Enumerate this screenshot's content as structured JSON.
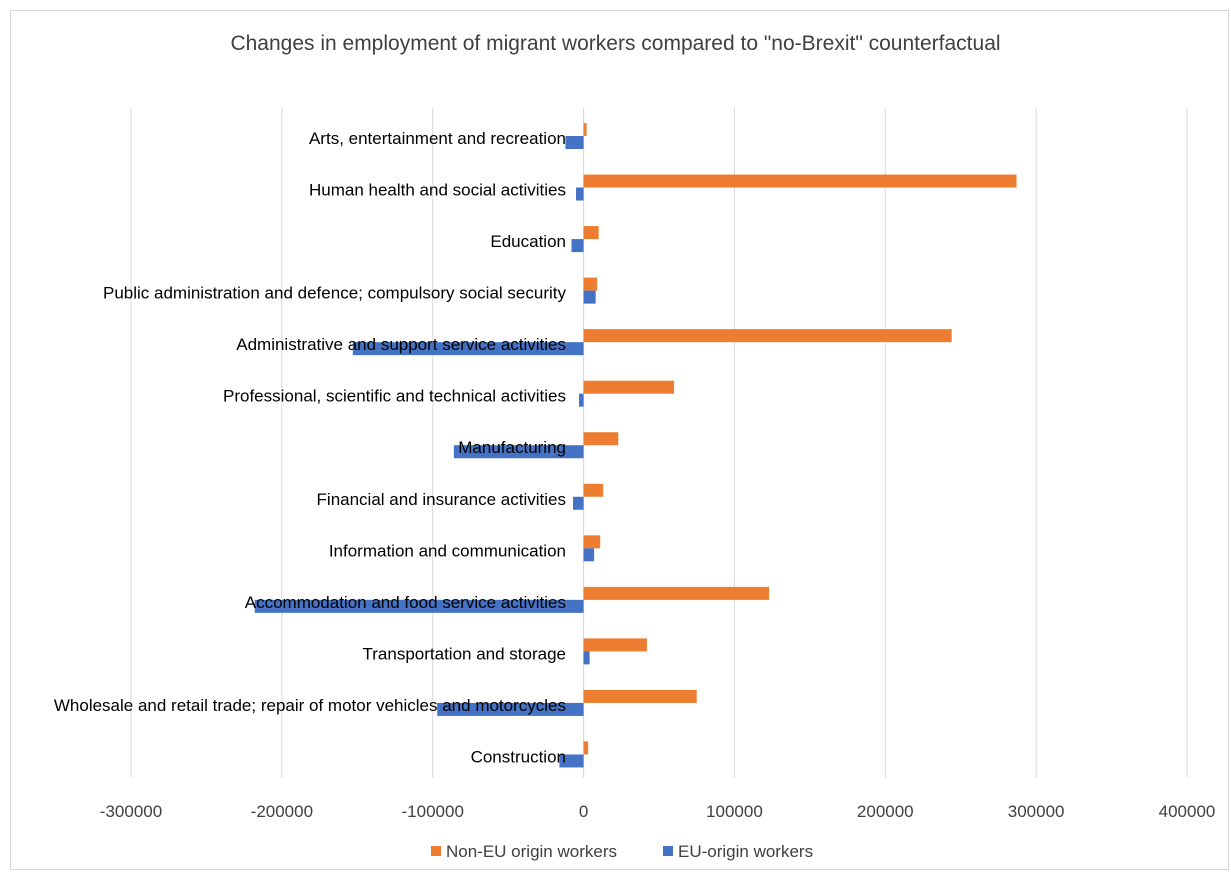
{
  "chart_data": {
    "type": "bar",
    "orientation": "horizontal",
    "title": "Changes in employment of migrant workers compared to \"no-Brexit\" counterfactual",
    "categories": [
      "Arts, entertainment and recreation",
      "Human health and social activities",
      "Education",
      "Public administration and defence; compulsory social security",
      "Administrative and support service activities",
      "Professional, scientific and technical activities",
      "Manufacturing",
      "Financial and insurance activities",
      "Information and communication",
      "Accommodation and food service activities",
      "Transportation and storage",
      "Wholesale and retail trade; repair of motor vehicles and motorcycles",
      "Construction"
    ],
    "series": [
      {
        "name": "Non-EU origin workers",
        "color": "#ed7d31",
        "values": [
          2000,
          287000,
          10000,
          9000,
          244000,
          60000,
          23000,
          13000,
          11000,
          123000,
          42000,
          75000,
          3000
        ]
      },
      {
        "name": "EU-origin workers",
        "color": "#4472c4",
        "values": [
          -12000,
          -5000,
          -8000,
          8000,
          -153000,
          -3000,
          -86000,
          -7000,
          7000,
          -218000,
          4000,
          -97000,
          -16000
        ]
      }
    ],
    "xlim": [
      -300000,
      400000
    ],
    "xticks": [
      "-300000",
      "-200000",
      "-100000",
      "0",
      "100000",
      "200000",
      "300000",
      "400000"
    ],
    "grid": true,
    "legend_position": "bottom"
  }
}
